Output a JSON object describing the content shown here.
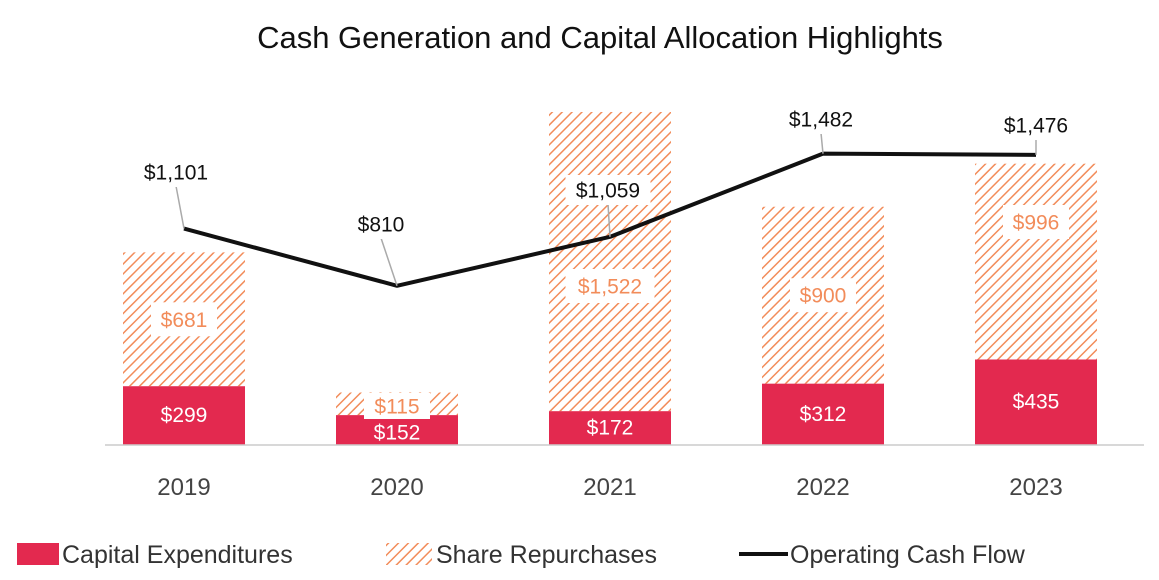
{
  "chart_data": {
    "type": "bar",
    "title": "Cash Generation and Capital Allocation Highlights",
    "categories": [
      "2019",
      "2020",
      "2021",
      "2022",
      "2023"
    ],
    "stacked": true,
    "series": [
      {
        "name": "Capital Expenditures",
        "kind": "bar",
        "color": "#e3294f",
        "values": [
          299,
          152,
          172,
          312,
          435
        ],
        "labels": [
          "$299",
          "$152",
          "$172",
          "$312",
          "$435"
        ]
      },
      {
        "name": "Share Repurchases",
        "kind": "bar",
        "pattern": "diagonal-hatch",
        "color": "#f28c5a",
        "values": [
          681,
          115,
          1522,
          900,
          996
        ],
        "labels": [
          "$681",
          "$115",
          "$1,522",
          "$900",
          "$996"
        ]
      },
      {
        "name": "Operating Cash Flow",
        "kind": "line",
        "color": "#111111",
        "values": [
          1101,
          810,
          1059,
          1482,
          1476
        ],
        "labels": [
          "$1,101",
          "$810",
          "$1,059",
          "$1,482",
          "$1,476"
        ]
      }
    ],
    "ylim": [
      0,
      1700
    ],
    "grid": false,
    "legend": "bottom"
  }
}
